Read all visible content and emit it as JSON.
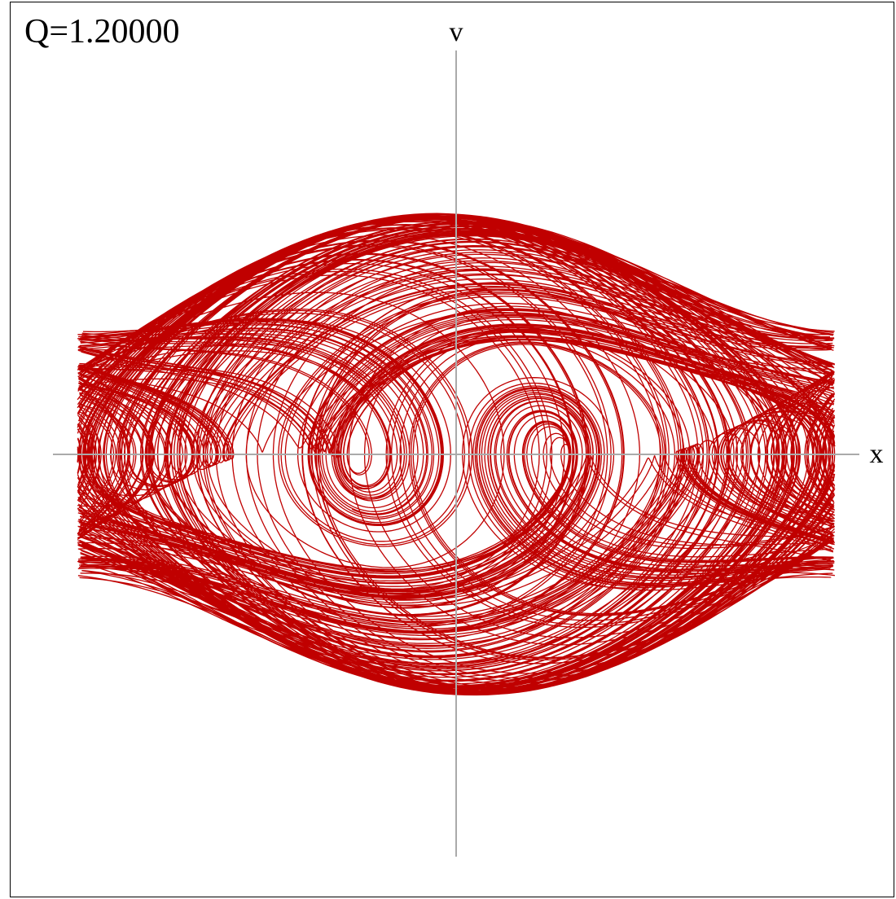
{
  "label": "Q=1.20000",
  "axes": {
    "x": "x",
    "y": "v"
  }
}
